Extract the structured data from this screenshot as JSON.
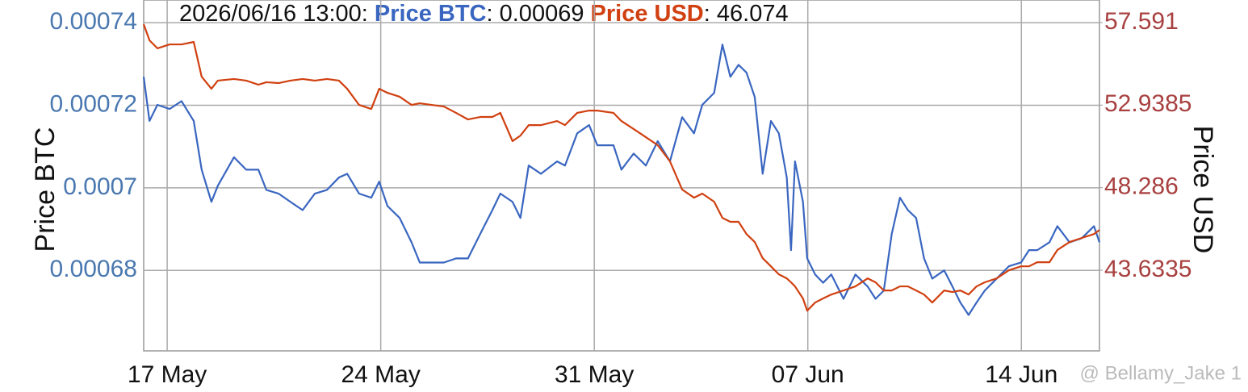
{
  "chart_data": {
    "type": "line",
    "tooltip": {
      "time": "2026/06/16 13:00:",
      "separator": ":",
      "values": [
        0.00069,
        46.074
      ]
    },
    "y_label": "Price BTC",
    "y2_label": "Price USD",
    "watermark": "@ Bellamy_Jake 1",
    "x": [
      16.23,
      16.42,
      16.68,
      17.08,
      17.47,
      17.87,
      18.13,
      18.45,
      18.66,
      19.19,
      19.59,
      19.99,
      20.25,
      20.65,
      21.04,
      21.44,
      21.84,
      22.24,
      22.63,
      22.9,
      23.29,
      23.69,
      23.95,
      24.22,
      24.62,
      25.01,
      25.28,
      25.67,
      26.07,
      26.47,
      26.86,
      27.26,
      27.66,
      27.92,
      28.32,
      28.58,
      28.85,
      29.25,
      29.78,
      30.04,
      30.44,
      30.83,
      31.1,
      31.63,
      31.89,
      32.29,
      32.69,
      33.08,
      33.48,
      33.88,
      34.27,
      34.54,
      34.93,
      35.2,
      35.46,
      35.73,
      35.99,
      36.26,
      36.52,
      36.79,
      37.05,
      37.31,
      37.45,
      37.58,
      37.84,
      37.98,
      38.24,
      38.5,
      38.77,
      39.17,
      39.56,
      39.96,
      40.22,
      40.49,
      40.75,
      41.02,
      41.28,
      41.55,
      41.81,
      42.08,
      42.47,
      42.74,
      43,
      43.27,
      43.53,
      43.8,
      44.19,
      44.59,
      44.99,
      45.25,
      45.52,
      45.92,
      46.18,
      46.58,
      46.98,
      47.38,
      47.56
    ],
    "xlim": [
      16.23,
      47.56
    ],
    "xticks": [
      {
        "value": 17,
        "label": "17 May"
      },
      {
        "value": 24,
        "label": "24 May"
      },
      {
        "value": 31,
        "label": "31 May"
      },
      {
        "value": 38,
        "label": "07 Jun"
      },
      {
        "value": 45,
        "label": "14 Jun"
      }
    ],
    "ylim": [
      0.0006605,
      0.0007455
    ],
    "yticks": [
      0.00068,
      0.0007,
      0.00072,
      0.00074
    ],
    "y2lim": [
      39.085,
      58.864
    ],
    "y2ticks": [
      43.6335,
      48.286,
      52.9385,
      57.591
    ],
    "grid": true,
    "series": [
      {
        "name": "Price BTC",
        "color": "#3a66c0",
        "values": [
          0.0007269,
          0.0007162,
          0.0007201,
          0.0007191,
          0.000721,
          0.0007162,
          0.0007044,
          0.0006966,
          0.0007005,
          0.0007074,
          0.0007044,
          0.0007044,
          0.0006995,
          0.0006986,
          0.0006966,
          0.0006946,
          0.0006986,
          0.0006995,
          0.0007025,
          0.0007034,
          0.0006986,
          0.0006976,
          0.0007015,
          0.0006956,
          0.0006927,
          0.0006868,
          0.0006819,
          0.0006819,
          0.0006819,
          0.0006829,
          0.0006829,
          0.0006888,
          0.0006946,
          0.0006986,
          0.0006966,
          0.0006927,
          0.0007054,
          0.0007034,
          0.0007064,
          0.0007054,
          0.0007132,
          0.0007152,
          0.0007103,
          0.0007103,
          0.0007044,
          0.0007083,
          0.0007054,
          0.0007113,
          0.0007064,
          0.0007171,
          0.0007132,
          0.0007201,
          0.000723,
          0.0007347,
          0.0007269,
          0.0007298,
          0.0007279,
          0.000722,
          0.0007034,
          0.0007162,
          0.0007132,
          0.0007025,
          0.0006849,
          0.0007064,
          0.0006966,
          0.0006829,
          0.000679,
          0.000677,
          0.000679,
          0.0006731,
          0.000679,
          0.0006761,
          0.0006731,
          0.0006751,
          0.0006888,
          0.0006976,
          0.0006946,
          0.0006927,
          0.0006829,
          0.000678,
          0.00068,
          0.0006761,
          0.0006722,
          0.0006692,
          0.0006722,
          0.0006751,
          0.000678,
          0.000681,
          0.0006819,
          0.0006849,
          0.0006849,
          0.0006868,
          0.0006907,
          0.0006868,
          0.0006878,
          0.0006907,
          0.0006868
        ]
      },
      {
        "name": "Price USD",
        "color": "#d04010",
        "axis": "y2",
        "values": [
          57.5,
          56.59,
          56.14,
          56.36,
          56.36,
          56.5,
          54.54,
          53.86,
          54.32,
          54.41,
          54.32,
          54.09,
          54.23,
          54.18,
          54.32,
          54.41,
          54.32,
          54.41,
          54.32,
          53.86,
          52.95,
          52.72,
          53.86,
          53.63,
          53.41,
          52.95,
          53.04,
          52.95,
          52.86,
          52.5,
          52.13,
          52.27,
          52.27,
          52.5,
          50.91,
          51.22,
          51.81,
          51.81,
          52.04,
          51.81,
          52.5,
          52.63,
          52.63,
          52.5,
          52.04,
          51.59,
          51.13,
          50.68,
          49.77,
          48.18,
          47.72,
          47.95,
          47.49,
          46.58,
          46.36,
          46.36,
          45.67,
          45.22,
          44.31,
          43.85,
          43.4,
          43.17,
          42.95,
          42.72,
          42.04,
          41.35,
          41.81,
          42.04,
          42.26,
          42.49,
          42.72,
          43.17,
          42.95,
          42.49,
          42.49,
          42.72,
          42.72,
          42.49,
          42.26,
          41.81,
          42.49,
          42.4,
          42.49,
          42.26,
          42.72,
          42.95,
          43.17,
          43.63,
          43.85,
          43.85,
          44.08,
          44.08,
          44.77,
          45.22,
          45.45,
          45.67,
          45.9
        ]
      }
    ]
  }
}
